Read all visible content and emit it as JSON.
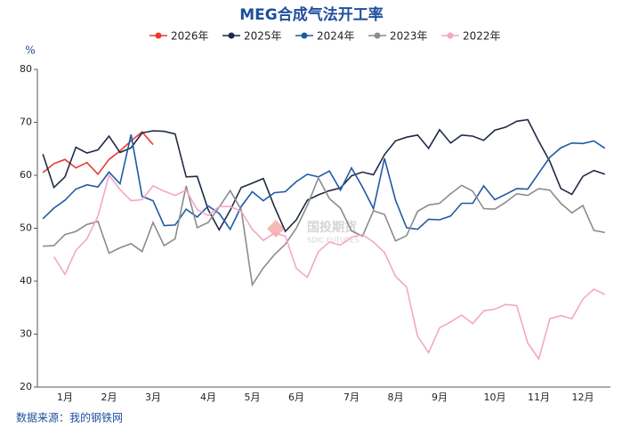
{
  "chart_data": {
    "type": "line",
    "title": "MEG合成气法开工率",
    "y_label": "%",
    "source": "数据来源：我的钢铁网",
    "watermark": {
      "name": "国投期货",
      "sub": "SDIC FUTURES"
    },
    "categories": [
      null,
      null,
      "1月",
      null,
      null,
      null,
      "2月",
      null,
      null,
      null,
      "3月",
      null,
      null,
      null,
      null,
      "4月",
      null,
      null,
      null,
      "5月",
      null,
      null,
      null,
      "6月",
      null,
      null,
      null,
      null,
      "7月",
      null,
      null,
      null,
      "8月",
      null,
      null,
      null,
      "9月",
      null,
      null,
      null,
      null,
      "10月",
      null,
      null,
      null,
      "11月",
      null,
      null,
      null,
      "12月",
      null,
      null
    ],
    "ylim": [
      20,
      80
    ],
    "yticks": [
      20,
      30,
      40,
      50,
      60,
      70,
      80
    ],
    "grid": false,
    "legend": "top",
    "series": [
      {
        "name": "2026年",
        "color": "#e8392a",
        "values": [
          60.5,
          62.2,
          63.0,
          61.4,
          62.4,
          60.2,
          63.0,
          64.6,
          66.5,
          68.2,
          65.8,
          null,
          null,
          null,
          null,
          null,
          null,
          null,
          null,
          null,
          null,
          null,
          null,
          null,
          null,
          null,
          null,
          null,
          null,
          null,
          null,
          null,
          null,
          null,
          null,
          null,
          null,
          null,
          null,
          null,
          null,
          null,
          null,
          null,
          null,
          null,
          null,
          null,
          null,
          null,
          null,
          null
        ]
      },
      {
        "name": "2025年",
        "color": "#1f2a44",
        "values": [
          64,
          57.7,
          59.7,
          65.3,
          64.2,
          64.8,
          67.4,
          64.3,
          65.2,
          68,
          68.4,
          68.3,
          67.8,
          59.7,
          59.8,
          53.5,
          49.7,
          53.4,
          57.7,
          58.5,
          59.4,
          54.1,
          49.4,
          51.6,
          55.3,
          56.3,
          57.1,
          57.6,
          59.9,
          60.6,
          60.1,
          63.9,
          66.5,
          67.2,
          67.6,
          65.1,
          68.6,
          66.1,
          67.6,
          67.4,
          66.6,
          68.5,
          69.1,
          70.2,
          70.5,
          66.4,
          62.6,
          57.5,
          56.4,
          59.8,
          60.9,
          60.2
        ]
      },
      {
        "name": "2024年",
        "color": "#1f5aa6",
        "values": [
          51.8,
          53.8,
          55.3,
          57.4,
          58.2,
          57.8,
          60.6,
          58.4,
          67.7,
          56,
          55.2,
          50.5,
          50.6,
          53.6,
          52.1,
          54.2,
          52.8,
          49.8,
          54.1,
          56.9,
          55.2,
          56.7,
          56.9,
          58.8,
          60.2,
          59.7,
          60.8,
          57.2,
          61.4,
          57.8,
          53.7,
          63.2,
          55.3,
          50.1,
          49.8,
          51.7,
          51.6,
          52.3,
          54.7,
          54.7,
          58,
          55.4,
          56.4,
          57.5,
          57.4,
          60.4,
          63.4,
          65.2,
          66.1,
          66,
          66.5,
          65.1
        ]
      },
      {
        "name": "2023年",
        "color": "#8c8c8c",
        "values": [
          46.6,
          46.7,
          48.8,
          49.4,
          50.7,
          51.3,
          45.3,
          46.3,
          47.1,
          45.6,
          51.1,
          46.7,
          48,
          58,
          50.1,
          51.1,
          54,
          57.1,
          53.5,
          39.3,
          42.5,
          45,
          47,
          50,
          54.3,
          59.5,
          55.6,
          53.8,
          49.5,
          48.5,
          53.3,
          52.6,
          47.6,
          48.6,
          53.2,
          54.4,
          54.7,
          56.5,
          58.1,
          57,
          53.7,
          53.6,
          54.9,
          56.5,
          56.2,
          57.5,
          57.2,
          54.7,
          52.9,
          54.3,
          49.6,
          49.2
        ]
      },
      {
        "name": "2022年",
        "color": "#f4a6c8",
        "values": [
          null,
          44.6,
          41.3,
          45.8,
          48,
          52.3,
          60,
          57.3,
          55.2,
          55.4,
          58,
          57,
          56.2,
          57.2,
          53.5,
          52.4,
          54.1,
          54.1,
          53.2,
          49.8,
          47.7,
          49.1,
          48.5,
          42.4,
          40.7,
          45.6,
          47.4,
          46.8,
          48.3,
          48.8,
          47.4,
          45.4,
          40.9,
          38.9,
          29.6,
          26.5,
          31.2,
          32.3,
          33.6,
          32,
          34.4,
          34.7,
          35.6,
          35.4,
          28.3,
          25.3,
          32.9,
          33.5,
          32.9,
          36.6,
          38.5,
          37.5
        ]
      }
    ]
  }
}
